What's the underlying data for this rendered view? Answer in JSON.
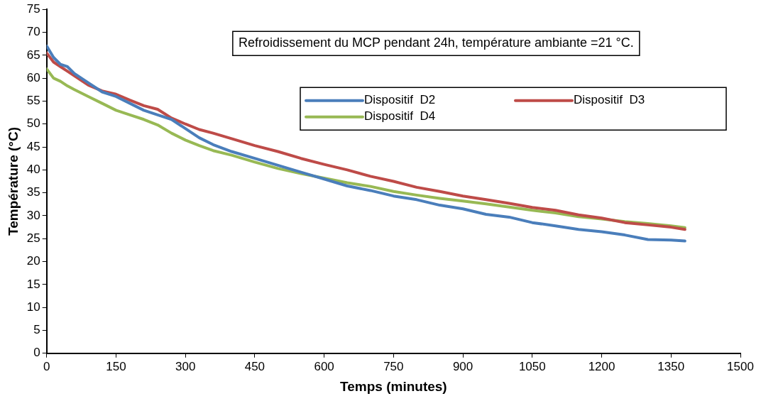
{
  "chart_data": {
    "type": "line",
    "xlabel": "Temps (minutes)",
    "ylabel": "Température (°C)",
    "annotations": [
      "Refroidissement du MCP pendant 24h, température ambiante =21 °C."
    ],
    "x": [
      0,
      15,
      30,
      45,
      60,
      90,
      120,
      150,
      180,
      210,
      240,
      270,
      300,
      330,
      360,
      400,
      450,
      500,
      550,
      600,
      650,
      700,
      750,
      800,
      850,
      900,
      950,
      1000,
      1050,
      1100,
      1150,
      1200,
      1250,
      1300,
      1350,
      1380
    ],
    "xlim": [
      0,
      1500
    ],
    "xticks": [
      0,
      150,
      300,
      450,
      600,
      750,
      900,
      1050,
      1200,
      1350,
      1500
    ],
    "ylim": [
      0,
      75
    ],
    "yticks": [
      0,
      5,
      10,
      15,
      20,
      25,
      30,
      35,
      40,
      45,
      50,
      55,
      60,
      65,
      70,
      75
    ],
    "grid": false,
    "legend": "top right",
    "marker": "none",
    "line_style": "solid",
    "series": [
      {
        "name": "Dispositif  D2",
        "color": "#4a7ebb",
        "values": [
          67,
          64.5,
          63,
          62.5,
          61,
          59,
          57,
          56,
          54.5,
          53,
          52,
          51,
          49,
          47,
          45.5,
          44,
          42.5,
          41,
          39.5,
          38,
          36.5,
          35.5,
          34.3,
          33.5,
          32.3,
          31.5,
          30.3,
          29.7,
          28.5,
          27.8,
          27,
          26.5,
          25.8,
          24.8,
          24.7,
          24.5
        ]
      },
      {
        "name": "Dispositif  D3",
        "color": "#be4b48",
        "values": [
          65.5,
          63.5,
          62.5,
          61.5,
          60.5,
          58.5,
          57.2,
          56.5,
          55.2,
          54,
          53.2,
          51.3,
          50,
          48.8,
          48,
          46.8,
          45.3,
          44,
          42.5,
          41.2,
          40,
          38.6,
          37.5,
          36.2,
          35.3,
          34.3,
          33.5,
          32.7,
          31.8,
          31.2,
          30.2,
          29.5,
          28.5,
          28,
          27.5,
          27
        ]
      },
      {
        "name": "Dispositif  D4",
        "color": "#98b954",
        "values": [
          62,
          60,
          59.3,
          58.3,
          57.5,
          56,
          54.5,
          53,
          52,
          51,
          49.8,
          48,
          46.5,
          45.3,
          44.2,
          43.2,
          41.7,
          40.3,
          39.2,
          38.2,
          37.2,
          36.4,
          35.3,
          34.5,
          33.8,
          33.2,
          32.6,
          31.9,
          31.2,
          30.6,
          29.8,
          29.3,
          28.7,
          28.3,
          27.8,
          27.4
        ]
      }
    ]
  }
}
